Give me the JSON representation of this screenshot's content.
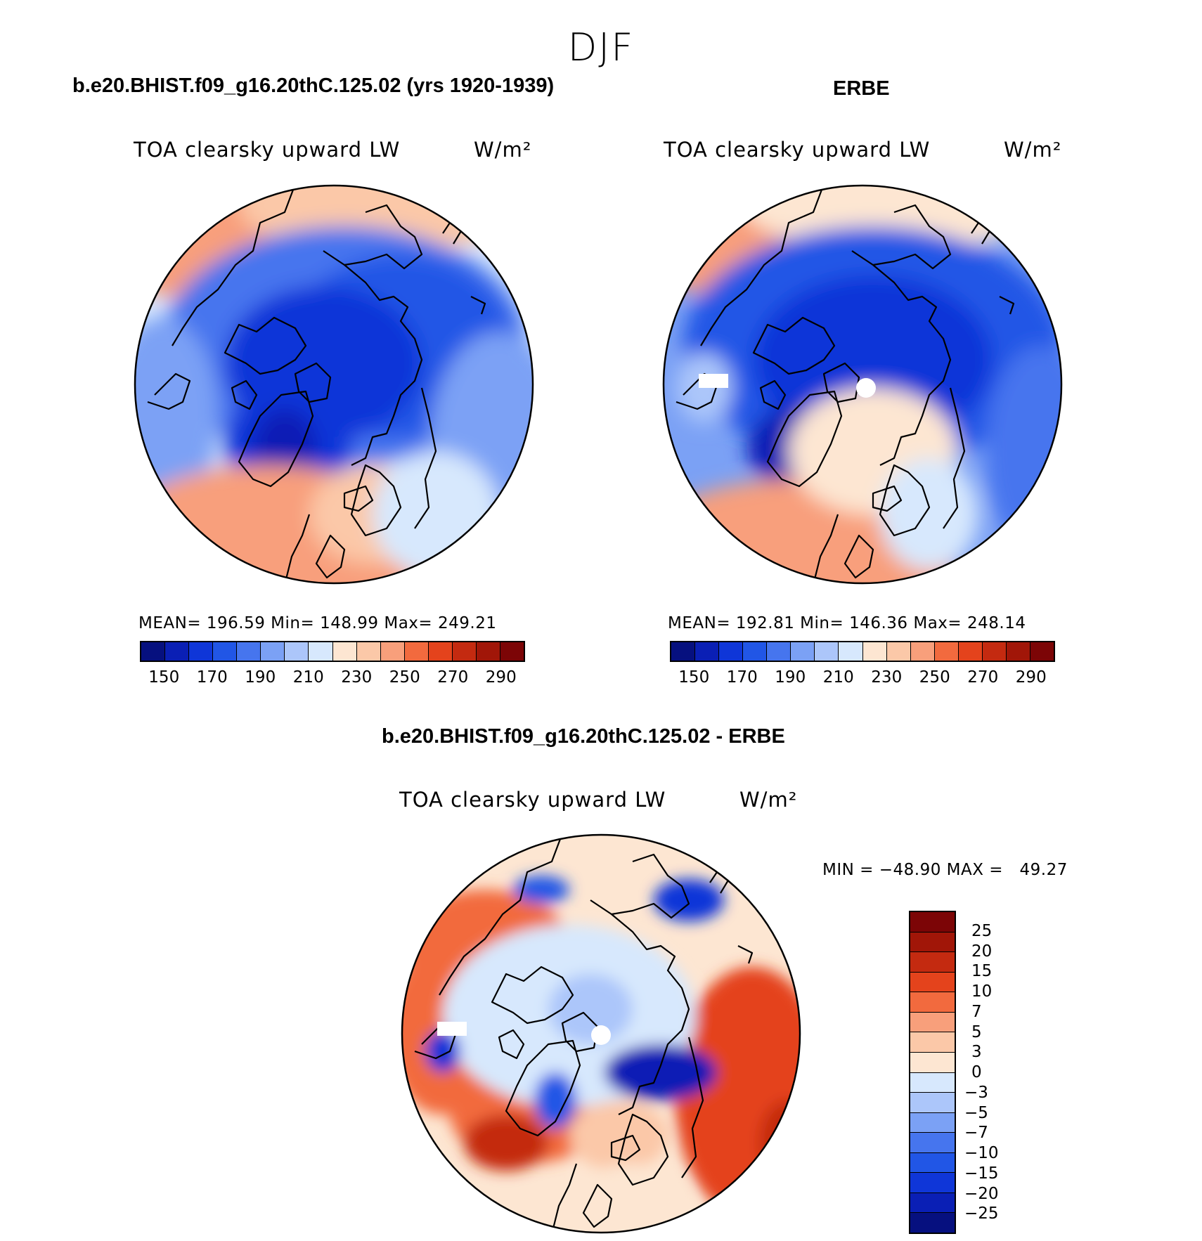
{
  "season": "DJF",
  "panels": {
    "model": {
      "title": "b.e20.BHIST.f09_g16.20thC.125.02 (yrs 1920-1939)",
      "variable": "TOA clearsky upward LW",
      "units": "W/m²",
      "stats": "MEAN=  196.59   Min=  148.99   Max=  249.21"
    },
    "obs": {
      "title": "ERBE",
      "variable": "TOA clearsky upward LW",
      "units": "W/m²",
      "stats": "MEAN=  192.81   Min=  146.36   Max=  248.14"
    },
    "diff": {
      "title": "b.e20.BHIST.f09_g16.20thC.125.02 - ERBE",
      "variable": "TOA clearsky upward LW",
      "units": "W/m²",
      "minmax": "MIN = −48.90 MAX =   49.27"
    }
  },
  "colorbar_main": {
    "tick_labels": [
      "150",
      "170",
      "190",
      "210",
      "230",
      "250",
      "270",
      "290"
    ],
    "colors": [
      "#06107f",
      "#0a1fb5",
      "#0f36d8",
      "#2156e6",
      "#4675ee",
      "#7ba1f5",
      "#acc6fa",
      "#d7e8fd",
      "#fde6d2",
      "#fbc8a8",
      "#f89f7b",
      "#f26a3e",
      "#e4431c",
      "#c42a10",
      "#a11608",
      "#7c0506"
    ]
  },
  "colorbar_diff": {
    "labels": [
      "25",
      "20",
      "15",
      "10",
      "7",
      "5",
      "3",
      "0",
      "−3",
      "−5",
      "−7",
      "−10",
      "−15",
      "−20",
      "−25"
    ],
    "colors": [
      "#7c0506",
      "#a11608",
      "#c42a10",
      "#e4431c",
      "#f26a3e",
      "#f89f7b",
      "#fbc8a8",
      "#fde6d2",
      "#d7e8fd",
      "#acc6fa",
      "#7ba1f5",
      "#4675ee",
      "#2156e6",
      "#0f36d8",
      "#0a1fb5",
      "#06107f"
    ]
  }
}
